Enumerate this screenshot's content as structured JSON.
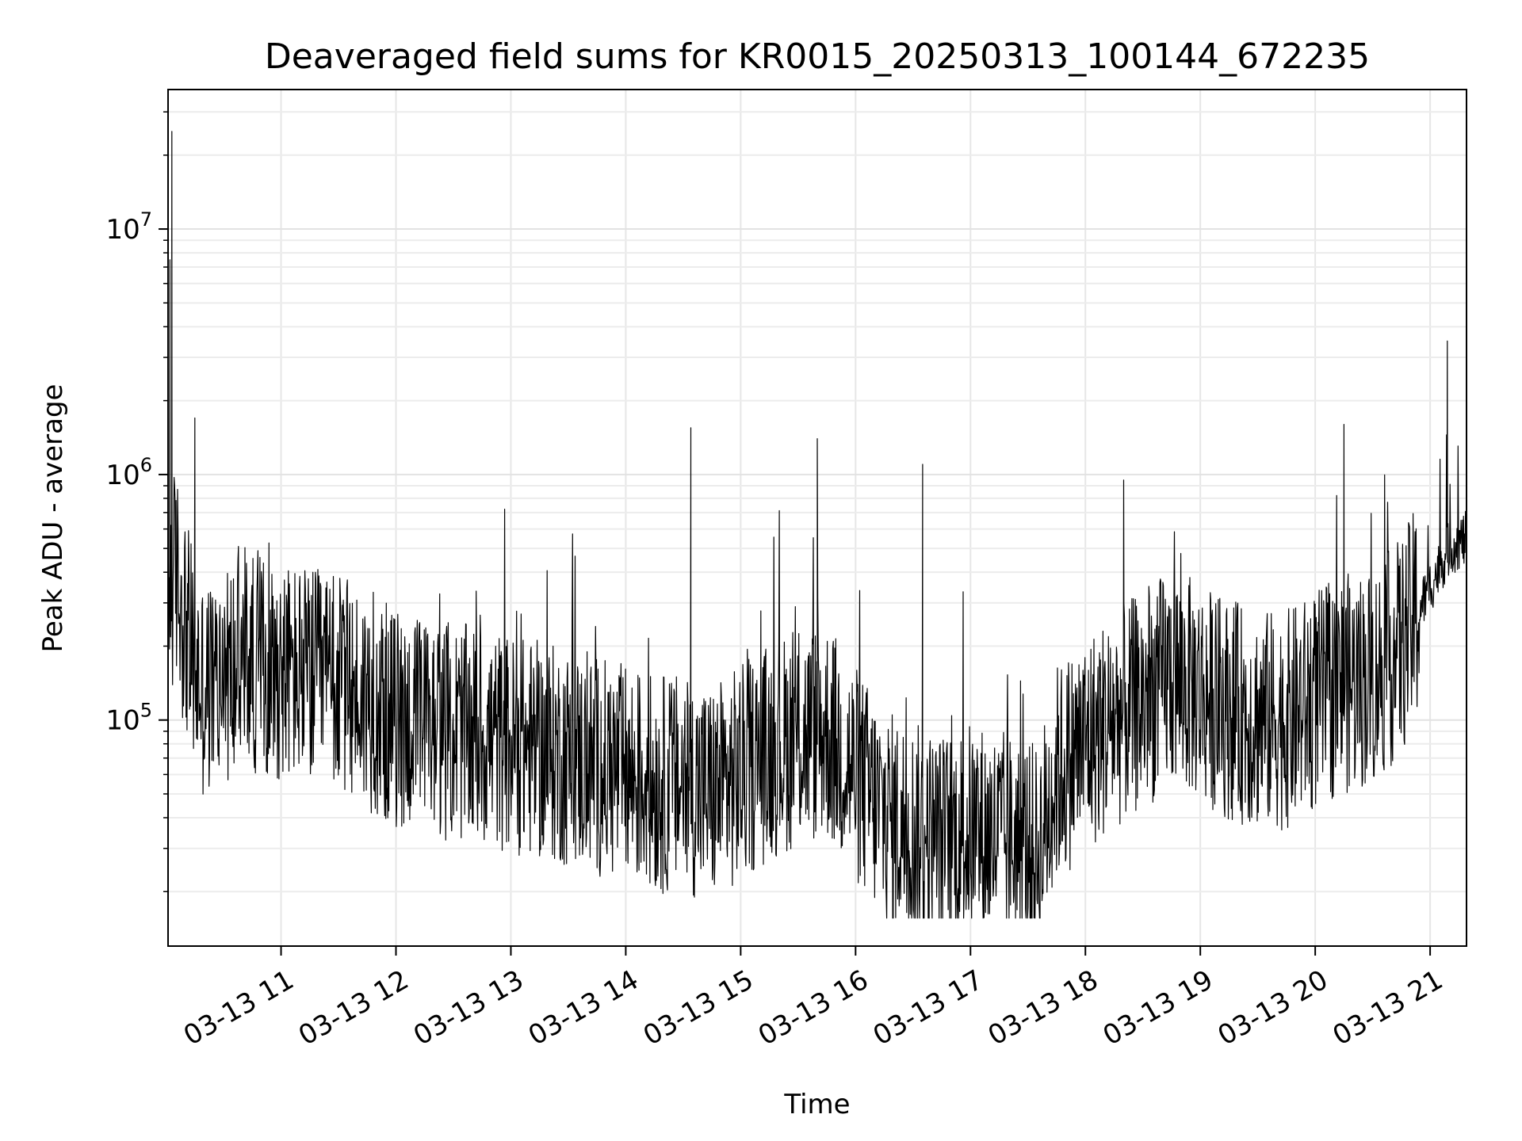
{
  "chart_data": {
    "type": "line",
    "title": "Deaveraged field sums for KR0015_20250313_100144_672235",
    "xlabel": "Time",
    "ylabel": "Peak ADU - average",
    "yscale": "log",
    "ylim": [
      12000,
      37000000
    ],
    "xlim": [
      "03-13 10:01",
      "03-13 21:19"
    ],
    "grid": true,
    "line_color": "#000000",
    "x_ticks": [
      "03-13 11",
      "03-13 12",
      "03-13 13",
      "03-13 14",
      "03-13 15",
      "03-13 16",
      "03-13 17",
      "03-13 18",
      "03-13 19",
      "03-13 20",
      "03-13 21"
    ],
    "y_ticks": [
      {
        "value": 100000,
        "base": "10",
        "exp": "5"
      },
      {
        "value": 1000000,
        "base": "10",
        "exp": "6"
      },
      {
        "value": 10000000,
        "base": "10",
        "exp": "7"
      }
    ],
    "series": [
      {
        "x": [
          "03-13 10:01",
          "03-13 10:05",
          "03-13 10:10",
          "03-13 10:15",
          "03-13 10:20",
          "03-13 10:30",
          "03-13 10:40",
          "03-13 10:50",
          "03-13 11:00",
          "03-13 11:15",
          "03-13 11:30",
          "03-13 11:45",
          "03-13 12:00",
          "03-13 12:15",
          "03-13 12:30",
          "03-13 12:45",
          "03-13 13:00",
          "03-13 13:15",
          "03-13 13:30",
          "03-13 13:45",
          "03-13 14:00",
          "03-13 14:15",
          "03-13 14:30",
          "03-13 14:45",
          "03-13 15:00",
          "03-13 15:15",
          "03-13 15:30",
          "03-13 15:45",
          "03-13 16:00",
          "03-13 16:15",
          "03-13 16:30",
          "03-13 16:45",
          "03-13 17:00",
          "03-13 17:15",
          "03-13 17:30",
          "03-13 17:35",
          "03-13 17:45",
          "03-13 18:00",
          "03-13 18:15",
          "03-13 18:30",
          "03-13 18:45",
          "03-13 19:00",
          "03-13 19:15",
          "03-13 19:30",
          "03-13 19:45",
          "03-13 20:00",
          "03-13 20:15",
          "03-13 20:30",
          "03-13 20:45",
          "03-13 21:00",
          "03-13 21:10",
          "03-13 21:19"
        ],
        "y": [
          300000,
          400000,
          250000,
          160000,
          130000,
          150000,
          170000,
          170000,
          160000,
          150000,
          140000,
          120000,
          100000,
          95000,
          90000,
          85000,
          80000,
          75000,
          70000,
          65000,
          60000,
          55000,
          55000,
          50000,
          60000,
          75000,
          85000,
          90000,
          60000,
          40000,
          35000,
          32000,
          35000,
          33000,
          30000,
          28000,
          60000,
          80000,
          100000,
          120000,
          150000,
          130000,
          110000,
          100000,
          100000,
          120000,
          140000,
          150000,
          200000,
          350000,
          500000,
          550000
        ],
        "spikes": [
          {
            "x": "03-13 10:03",
            "y": 25000000
          },
          {
            "x": "03-13 10:02",
            "y": 7500000
          },
          {
            "x": "03-13 10:15",
            "y": 1700000
          },
          {
            "x": "03-13 14:34",
            "y": 1550000
          },
          {
            "x": "03-13 15:40",
            "y": 1400000
          },
          {
            "x": "03-13 16:35",
            "y": 1100000
          },
          {
            "x": "03-13 18:20",
            "y": 950000
          },
          {
            "x": "03-13 20:15",
            "y": 1600000
          },
          {
            "x": "03-13 21:09",
            "y": 3500000
          }
        ]
      }
    ]
  }
}
